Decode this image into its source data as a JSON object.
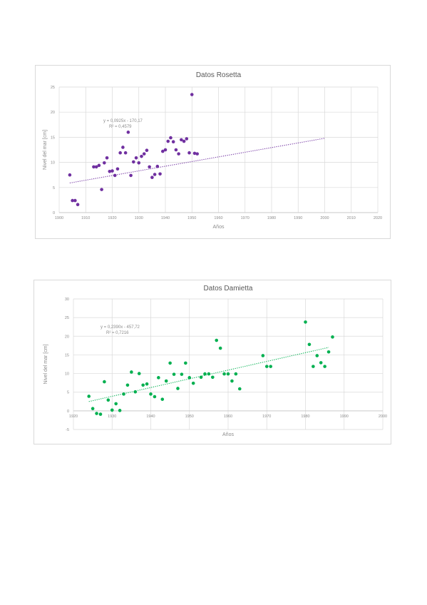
{
  "chart_data": [
    {
      "type": "scatter",
      "title": "Datos Rosetta",
      "xlabel": "Años",
      "ylabel": "Nivel del mar [cm]",
      "xlim": [
        1900,
        2020
      ],
      "ylim": [
        0,
        25
      ],
      "x_ticks": [
        "1900",
        "1910",
        "1920",
        "1930",
        "1940",
        "1950",
        "1960",
        "1970",
        "1980",
        "1990",
        "2000",
        "2010",
        "2020"
      ],
      "y_ticks": [
        "0",
        "5",
        "10",
        "15",
        "20",
        "25"
      ],
      "grid": true,
      "legend": "none",
      "marker_color": "#7030a0",
      "trendline": {
        "type": "linear",
        "style": "dotted",
        "x_range": [
          1904,
          2000
        ],
        "y_range": [
          5.9,
          14.8
        ]
      },
      "equation": "y = 0,0925x - 170,17",
      "r_squared": "R² = 0,4579",
      "points": [
        {
          "x": 1904,
          "y": 7.5
        },
        {
          "x": 1905,
          "y": 2.4
        },
        {
          "x": 1906,
          "y": 2.4
        },
        {
          "x": 1907,
          "y": 1.6
        },
        {
          "x": 1913,
          "y": 9.1
        },
        {
          "x": 1914,
          "y": 9.1
        },
        {
          "x": 1915,
          "y": 9.4
        },
        {
          "x": 1916,
          "y": 4.6
        },
        {
          "x": 1917,
          "y": 9.9
        },
        {
          "x": 1918,
          "y": 10.9
        },
        {
          "x": 1919,
          "y": 8.2
        },
        {
          "x": 1920,
          "y": 8.3
        },
        {
          "x": 1921,
          "y": 7.4
        },
        {
          "x": 1922,
          "y": 8.7
        },
        {
          "x": 1923,
          "y": 11.9
        },
        {
          "x": 1924,
          "y": 13.0
        },
        {
          "x": 1925,
          "y": 11.9
        },
        {
          "x": 1926,
          "y": 16.0
        },
        {
          "x": 1927,
          "y": 7.4
        },
        {
          "x": 1928,
          "y": 10.1
        },
        {
          "x": 1929,
          "y": 10.9
        },
        {
          "x": 1930,
          "y": 9.9
        },
        {
          "x": 1931,
          "y": 11.2
        },
        {
          "x": 1932,
          "y": 11.7
        },
        {
          "x": 1933,
          "y": 12.4
        },
        {
          "x": 1934,
          "y": 9.1
        },
        {
          "x": 1935,
          "y": 7.0
        },
        {
          "x": 1936,
          "y": 7.6
        },
        {
          "x": 1937,
          "y": 9.2
        },
        {
          "x": 1938,
          "y": 7.7
        },
        {
          "x": 1939,
          "y": 12.2
        },
        {
          "x": 1940,
          "y": 12.5
        },
        {
          "x": 1941,
          "y": 14.2
        },
        {
          "x": 1942,
          "y": 14.9
        },
        {
          "x": 1943,
          "y": 14.1
        },
        {
          "x": 1944,
          "y": 12.5
        },
        {
          "x": 1945,
          "y": 11.7
        },
        {
          "x": 1946,
          "y": 14.5
        },
        {
          "x": 1947,
          "y": 14.2
        },
        {
          "x": 1948,
          "y": 14.7
        },
        {
          "x": 1949,
          "y": 11.9
        },
        {
          "x": 1950,
          "y": 23.5
        },
        {
          "x": 1951,
          "y": 11.8
        },
        {
          "x": 1952,
          "y": 11.7
        }
      ]
    },
    {
      "type": "scatter",
      "title": "Datos Damietta",
      "xlabel": "Años",
      "ylabel": "Nivel del mar [cm]",
      "xlim": [
        1920,
        2000
      ],
      "ylim": [
        -5,
        30
      ],
      "x_ticks": [
        "1920",
        "1930",
        "1940",
        "1950",
        "1960",
        "1970",
        "1980",
        "1990",
        "2000"
      ],
      "y_ticks": [
        "-5",
        "0",
        "5",
        "10",
        "15",
        "20",
        "25",
        "30"
      ],
      "grid": true,
      "legend": "none",
      "marker_color": "#00b050",
      "trendline": {
        "type": "linear",
        "style": "dotted",
        "x_range": [
          1924,
          1986
        ],
        "y_range": [
          2.5,
          17.0
        ]
      },
      "equation": "y = 0,2390x - 457,72",
      "r_squared": "R² = 0,7216",
      "points": [
        {
          "x": 1924,
          "y": 3.9
        },
        {
          "x": 1925,
          "y": 0.6
        },
        {
          "x": 1926,
          "y": -0.7
        },
        {
          "x": 1927,
          "y": -0.9
        },
        {
          "x": 1928,
          "y": 7.8
        },
        {
          "x": 1929,
          "y": 2.9
        },
        {
          "x": 1930,
          "y": 0.2
        },
        {
          "x": 1931,
          "y": 1.9
        },
        {
          "x": 1932,
          "y": 0.1
        },
        {
          "x": 1933,
          "y": 4.5
        },
        {
          "x": 1934,
          "y": 6.9
        },
        {
          "x": 1935,
          "y": 10.4
        },
        {
          "x": 1936,
          "y": 5.1
        },
        {
          "x": 1937,
          "y": 10.0
        },
        {
          "x": 1938,
          "y": 6.9
        },
        {
          "x": 1939,
          "y": 7.2
        },
        {
          "x": 1940,
          "y": 4.5
        },
        {
          "x": 1941,
          "y": 3.8
        },
        {
          "x": 1942,
          "y": 8.9
        },
        {
          "x": 1943,
          "y": 3.1
        },
        {
          "x": 1944,
          "y": 8.0
        },
        {
          "x": 1945,
          "y": 12.8
        },
        {
          "x": 1946,
          "y": 9.8
        },
        {
          "x": 1947,
          "y": 6.0
        },
        {
          "x": 1948,
          "y": 9.8
        },
        {
          "x": 1949,
          "y": 12.8
        },
        {
          "x": 1950,
          "y": 8.9
        },
        {
          "x": 1951,
          "y": 7.4
        },
        {
          "x": 1953,
          "y": 9.0
        },
        {
          "x": 1954,
          "y": 9.9
        },
        {
          "x": 1955,
          "y": 9.9
        },
        {
          "x": 1956,
          "y": 9.0
        },
        {
          "x": 1957,
          "y": 18.9
        },
        {
          "x": 1958,
          "y": 16.8
        },
        {
          "x": 1959,
          "y": 9.9
        },
        {
          "x": 1960,
          "y": 9.9
        },
        {
          "x": 1961,
          "y": 8.0
        },
        {
          "x": 1962,
          "y": 9.9
        },
        {
          "x": 1963,
          "y": 5.9
        },
        {
          "x": 1969,
          "y": 14.8
        },
        {
          "x": 1970,
          "y": 11.9
        },
        {
          "x": 1971,
          "y": 11.9
        },
        {
          "x": 1980,
          "y": 23.8
        },
        {
          "x": 1981,
          "y": 17.8
        },
        {
          "x": 1982,
          "y": 11.9
        },
        {
          "x": 1983,
          "y": 14.8
        },
        {
          "x": 1984,
          "y": 12.9
        },
        {
          "x": 1985,
          "y": 11.9
        },
        {
          "x": 1986,
          "y": 15.8
        },
        {
          "x": 1987,
          "y": 19.8
        }
      ]
    }
  ]
}
